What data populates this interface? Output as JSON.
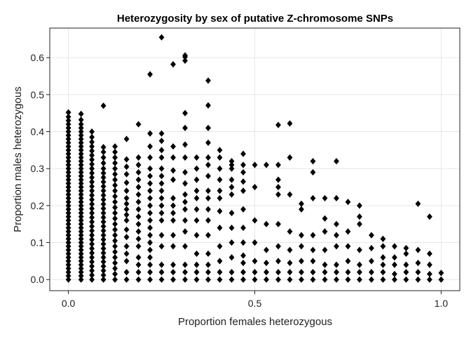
{
  "chart_data": {
    "type": "scatter",
    "title": "Heterozygosity by sex of putative Z-chromosome SNPs",
    "xlabel": "Proportion females heterozygous",
    "ylabel": "Proportion males heterozygous",
    "xlim": [
      -0.05,
      1.05
    ],
    "ylim": [
      -0.03,
      0.68
    ],
    "x_ticks": [
      0.0,
      0.5,
      1.0
    ],
    "x_tick_labels": [
      "0.0",
      "0.5",
      "1.0"
    ],
    "y_ticks": [
      0.0,
      0.1,
      0.2,
      0.3,
      0.4,
      0.5,
      0.6
    ],
    "y_tick_labels": [
      "0.0",
      "0.1",
      "0.2",
      "0.3",
      "0.4",
      "0.5",
      "0.6"
    ],
    "grid": true,
    "marker": "diamond",
    "marker_color": "#000000",
    "columns": [
      {
        "x": 0.0,
        "y": [
          0.0,
          0.01,
          0.02,
          0.03,
          0.04,
          0.05,
          0.06,
          0.07,
          0.08,
          0.09,
          0.1,
          0.11,
          0.12,
          0.13,
          0.14,
          0.15,
          0.16,
          0.17,
          0.18,
          0.19,
          0.2,
          0.21,
          0.22,
          0.23,
          0.24,
          0.25,
          0.26,
          0.27,
          0.28,
          0.29,
          0.3,
          0.31,
          0.32,
          0.33,
          0.34,
          0.35,
          0.36,
          0.37,
          0.38,
          0.39,
          0.4,
          0.41,
          0.42,
          0.43,
          0.44,
          0.452
        ]
      },
      {
        "x": 0.034,
        "y": [
          0.0,
          0.01,
          0.02,
          0.03,
          0.04,
          0.05,
          0.06,
          0.07,
          0.08,
          0.09,
          0.1,
          0.11,
          0.12,
          0.13,
          0.14,
          0.15,
          0.16,
          0.17,
          0.18,
          0.19,
          0.2,
          0.21,
          0.22,
          0.23,
          0.24,
          0.25,
          0.26,
          0.27,
          0.28,
          0.29,
          0.3,
          0.31,
          0.32,
          0.33,
          0.34,
          0.35,
          0.36,
          0.37,
          0.38,
          0.39,
          0.4,
          0.41,
          0.42,
          0.432,
          0.448
        ]
      },
      {
        "x": 0.063,
        "y": [
          0.0,
          0.012,
          0.024,
          0.036,
          0.048,
          0.06,
          0.072,
          0.084,
          0.096,
          0.108,
          0.12,
          0.132,
          0.144,
          0.156,
          0.168,
          0.18,
          0.192,
          0.204,
          0.216,
          0.228,
          0.24,
          0.252,
          0.264,
          0.276,
          0.288,
          0.3,
          0.312,
          0.324,
          0.336,
          0.348,
          0.36,
          0.372,
          0.385,
          0.4
        ]
      },
      {
        "x": 0.094,
        "y": [
          0.0,
          0.012,
          0.024,
          0.036,
          0.048,
          0.06,
          0.072,
          0.084,
          0.096,
          0.108,
          0.12,
          0.132,
          0.144,
          0.156,
          0.168,
          0.18,
          0.192,
          0.204,
          0.216,
          0.228,
          0.24,
          0.252,
          0.264,
          0.276,
          0.288,
          0.3,
          0.315,
          0.33,
          0.345,
          0.358,
          0.47
        ]
      },
      {
        "x": 0.125,
        "y": [
          0.0,
          0.015,
          0.03,
          0.045,
          0.06,
          0.075,
          0.09,
          0.105,
          0.12,
          0.135,
          0.15,
          0.165,
          0.18,
          0.195,
          0.21,
          0.225,
          0.24,
          0.255,
          0.27,
          0.285,
          0.3,
          0.315,
          0.33,
          0.345,
          0.36
        ]
      },
      {
        "x": 0.156,
        "y": [
          0.0,
          0.02,
          0.05,
          0.07,
          0.09,
          0.115,
          0.135,
          0.16,
          0.175,
          0.19,
          0.205,
          0.22,
          0.24,
          0.262,
          0.285,
          0.305,
          0.325,
          0.38
        ]
      },
      {
        "x": 0.188,
        "y": [
          0.0,
          0.02,
          0.04,
          0.06,
          0.09,
          0.11,
          0.13,
          0.15,
          0.17,
          0.19,
          0.21,
          0.23,
          0.25,
          0.27,
          0.29,
          0.31,
          0.33,
          0.42
        ]
      },
      {
        "x": 0.219,
        "y": [
          0.0,
          0.02,
          0.04,
          0.06,
          0.08,
          0.1,
          0.12,
          0.14,
          0.16,
          0.18,
          0.2,
          0.22,
          0.24,
          0.26,
          0.28,
          0.3,
          0.33,
          0.36,
          0.395,
          0.555
        ]
      },
      {
        "x": 0.25,
        "y": [
          0.0,
          0.02,
          0.04,
          0.09,
          0.12,
          0.16,
          0.18,
          0.2,
          0.22,
          0.24,
          0.26,
          0.28,
          0.3,
          0.33,
          0.35,
          0.375,
          0.395,
          0.655
        ]
      },
      {
        "x": 0.281,
        "y": [
          0.0,
          0.02,
          0.04,
          0.09,
          0.12,
          0.16,
          0.18,
          0.2,
          0.22,
          0.27,
          0.295,
          0.33,
          0.36,
          0.582
        ]
      },
      {
        "x": 0.313,
        "y": [
          0.0,
          0.02,
          0.04,
          0.09,
          0.13,
          0.16,
          0.19,
          0.21,
          0.23,
          0.26,
          0.29,
          0.33,
          0.365,
          0.41,
          0.45,
          0.592,
          0.602,
          0.606
        ]
      },
      {
        "x": 0.344,
        "y": [
          0.0,
          0.02,
          0.04,
          0.07,
          0.12,
          0.16,
          0.19,
          0.22,
          0.24,
          0.27,
          0.3,
          0.33
        ]
      },
      {
        "x": 0.375,
        "y": [
          0.0,
          0.02,
          0.04,
          0.07,
          0.12,
          0.16,
          0.19,
          0.22,
          0.24,
          0.28,
          0.31,
          0.33,
          0.37,
          0.41,
          0.471,
          0.538
        ]
      },
      {
        "x": 0.406,
        "y": [
          0.0,
          0.02,
          0.05,
          0.09,
          0.14,
          0.185,
          0.22,
          0.24,
          0.27,
          0.3,
          0.33,
          0.35
        ]
      },
      {
        "x": 0.438,
        "y": [
          0.0,
          0.02,
          0.06,
          0.1,
          0.14,
          0.18,
          0.23,
          0.25,
          0.27,
          0.3,
          0.31,
          0.32
        ]
      },
      {
        "x": 0.469,
        "y": [
          0.0,
          0.02,
          0.045,
          0.065,
          0.1,
          0.14,
          0.19,
          0.24,
          0.265,
          0.29,
          0.31,
          0.34
        ]
      },
      {
        "x": 0.5,
        "y": [
          0.0,
          0.02,
          0.05,
          0.1,
          0.16,
          0.25,
          0.31
        ]
      },
      {
        "x": 0.531,
        "y": [
          0.0,
          0.02,
          0.045,
          0.08,
          0.15,
          0.31
        ]
      },
      {
        "x": 0.563,
        "y": [
          0.0,
          0.02,
          0.05,
          0.09,
          0.15,
          0.23,
          0.25,
          0.27,
          0.31,
          0.418
        ]
      },
      {
        "x": 0.594,
        "y": [
          0.0,
          0.02,
          0.045,
          0.08,
          0.13,
          0.23,
          0.33,
          0.422
        ]
      },
      {
        "x": 0.625,
        "y": [
          0.0,
          0.02,
          0.05,
          0.09,
          0.12,
          0.19,
          0.205
        ]
      },
      {
        "x": 0.656,
        "y": [
          0.0,
          0.02,
          0.05,
          0.08,
          0.12,
          0.22,
          0.29,
          0.32
        ]
      },
      {
        "x": 0.688,
        "y": [
          0.0,
          0.02,
          0.04,
          0.08,
          0.13,
          0.165,
          0.22
        ]
      },
      {
        "x": 0.719,
        "y": [
          0.0,
          0.02,
          0.04,
          0.09,
          0.12,
          0.15,
          0.22,
          0.32
        ]
      },
      {
        "x": 0.75,
        "y": [
          0.0,
          0.02,
          0.05,
          0.09,
          0.13,
          0.21
        ]
      },
      {
        "x": 0.781,
        "y": [
          0.0,
          0.02,
          0.04,
          0.08,
          0.15,
          0.17,
          0.2
        ]
      },
      {
        "x": 0.813,
        "y": [
          0.0,
          0.02,
          0.05,
          0.085,
          0.12
        ]
      },
      {
        "x": 0.844,
        "y": [
          0.0,
          0.02,
          0.04,
          0.06,
          0.09,
          0.11
        ]
      },
      {
        "x": 0.875,
        "y": [
          0.0,
          0.015,
          0.04,
          0.06,
          0.09
        ]
      },
      {
        "x": 0.906,
        "y": [
          0.0,
          0.02,
          0.04,
          0.07,
          0.085
        ]
      },
      {
        "x": 0.938,
        "y": [
          0.0,
          0.02,
          0.045,
          0.08,
          0.205
        ]
      },
      {
        "x": 0.969,
        "y": [
          0.0,
          0.015,
          0.04,
          0.07,
          0.17
        ]
      },
      {
        "x": 1.0,
        "y": [
          0.0,
          0.018
        ]
      }
    ]
  }
}
